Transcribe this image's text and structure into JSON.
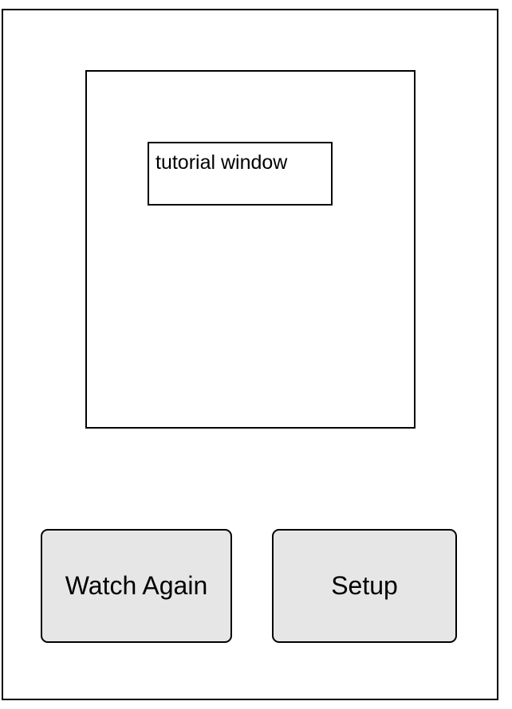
{
  "tutorial": {
    "window_label": "tutorial window"
  },
  "actions": {
    "watch_again_label": "Watch Again",
    "setup_label": "Setup"
  },
  "colors": {
    "button_fill": "#e6e6e6",
    "stroke": "#000000",
    "background": "#ffffff"
  }
}
